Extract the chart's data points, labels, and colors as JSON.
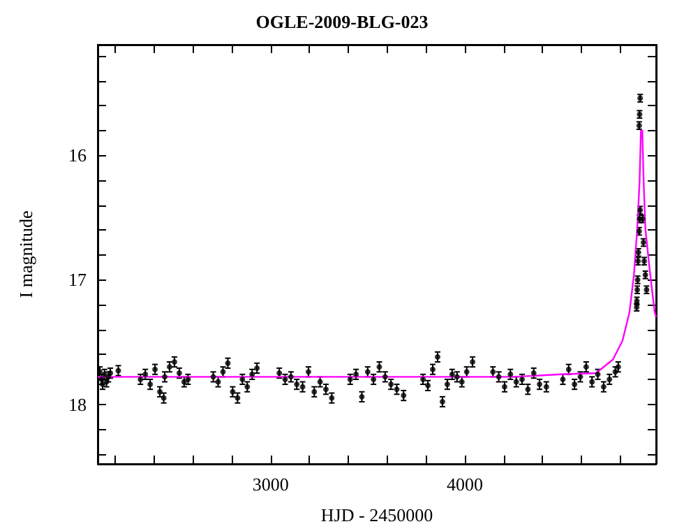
{
  "chart_data": {
    "type": "scatter",
    "title": "OGLE-2009-BLG-023",
    "xlabel": "HJD - 2450000",
    "ylabel": "I magnitude",
    "xlim": [
      2110,
      4985
    ],
    "ylim": [
      18.48,
      15.11
    ],
    "xticks": [
      {
        "value": 2200,
        "label": null
      },
      {
        "value": 2400,
        "label": null
      },
      {
        "value": 2600,
        "label": null
      },
      {
        "value": 2800,
        "label": null
      },
      3000,
      {
        "value": 3200,
        "label": null
      },
      {
        "value": 3400,
        "label": null
      },
      {
        "value": 3600,
        "label": null
      },
      {
        "value": 3800,
        "label": null
      },
      4000,
      {
        "value": 4200,
        "label": null
      },
      {
        "value": 4400,
        "label": null
      },
      {
        "value": 4600,
        "label": null
      },
      {
        "value": 4800,
        "label": null
      }
    ],
    "yticks": [
      {
        "value": 15.2,
        "label": null
      },
      {
        "value": 15.4,
        "label": null
      },
      {
        "value": 15.6,
        "label": null
      },
      {
        "value": 15.8,
        "label": null
      },
      16,
      {
        "value": 16.2,
        "label": null
      },
      {
        "value": 16.4,
        "label": null
      },
      {
        "value": 16.6,
        "label": null
      },
      {
        "value": 16.8,
        "label": null
      },
      17,
      {
        "value": 17.2,
        "label": null
      },
      {
        "value": 17.4,
        "label": null
      },
      {
        "value": 17.6,
        "label": null
      },
      {
        "value": 17.8,
        "label": null
      },
      18,
      {
        "value": 18.2,
        "label": null
      },
      {
        "value": 18.4,
        "label": null
      }
    ],
    "grid": false,
    "marker": "circle",
    "series": [
      {
        "color": "#000000",
        "x": [
          2121,
          2130,
          2135,
          2145,
          2155,
          2165,
          2175,
          2216,
          2330,
          2355,
          2380,
          2405,
          2430,
          2450,
          2455,
          2480,
          2505,
          2530,
          2555,
          2575,
          2705,
          2730,
          2755,
          2780,
          2805,
          2830,
          2855,
          2880,
          2905,
          2930,
          3045,
          3075,
          3105,
          3135,
          3165,
          3195,
          3225,
          3255,
          3285,
          3315,
          3410,
          3440,
          3470,
          3500,
          3530,
          3560,
          3590,
          3620,
          3650,
          3685,
          3785,
          3810,
          3835,
          3860,
          3885,
          3910,
          3935,
          3960,
          3985,
          4010,
          4040,
          4145,
          4175,
          4205,
          4235,
          4265,
          4295,
          4325,
          4355,
          4385,
          4420,
          4505,
          4535,
          4565,
          4595,
          4625,
          4655,
          4685,
          4715,
          4745,
          4775,
          4790,
          4885,
          4886,
          4888,
          4890,
          4892,
          4894,
          4898,
          4900,
          4903,
          4898,
          4900,
          4903,
          4916,
          4920,
          4924,
          4930,
          4936
        ],
        "values": [
          17.74,
          17.8,
          17.84,
          17.76,
          17.82,
          17.78,
          17.75,
          17.73,
          17.8,
          17.76,
          17.84,
          17.72,
          17.9,
          17.95,
          17.78,
          17.7,
          17.66,
          17.75,
          17.82,
          17.8,
          17.78,
          17.82,
          17.74,
          17.67,
          17.9,
          17.95,
          17.8,
          17.86,
          17.76,
          17.71,
          17.75,
          17.8,
          17.78,
          17.84,
          17.86,
          17.74,
          17.9,
          17.82,
          17.88,
          17.95,
          17.8,
          17.76,
          17.94,
          17.74,
          17.8,
          17.7,
          17.78,
          17.84,
          17.88,
          17.93,
          17.8,
          17.85,
          17.72,
          17.62,
          17.98,
          17.84,
          17.76,
          17.78,
          17.82,
          17.74,
          17.66,
          17.74,
          17.78,
          17.86,
          17.76,
          17.82,
          17.8,
          17.88,
          17.75,
          17.84,
          17.86,
          17.8,
          17.72,
          17.84,
          17.78,
          17.7,
          17.82,
          17.76,
          17.86,
          17.8,
          17.74,
          17.7,
          17.22,
          17.17,
          17.08,
          17.0,
          16.85,
          16.78,
          16.61,
          16.51,
          16.44,
          15.76,
          15.67,
          15.54,
          16.51,
          16.7,
          16.85,
          16.96,
          17.08
        ],
        "errors": [
          0.04,
          0.04,
          0.04,
          0.04,
          0.04,
          0.04,
          0.04,
          0.04,
          0.04,
          0.04,
          0.04,
          0.04,
          0.04,
          0.04,
          0.04,
          0.04,
          0.04,
          0.04,
          0.04,
          0.04,
          0.04,
          0.04,
          0.04,
          0.04,
          0.04,
          0.04,
          0.04,
          0.04,
          0.04,
          0.04,
          0.04,
          0.04,
          0.04,
          0.04,
          0.04,
          0.04,
          0.04,
          0.04,
          0.04,
          0.04,
          0.04,
          0.04,
          0.04,
          0.04,
          0.04,
          0.04,
          0.04,
          0.04,
          0.04,
          0.04,
          0.04,
          0.04,
          0.04,
          0.04,
          0.04,
          0.04,
          0.04,
          0.04,
          0.04,
          0.04,
          0.04,
          0.04,
          0.04,
          0.04,
          0.04,
          0.04,
          0.04,
          0.04,
          0.04,
          0.04,
          0.04,
          0.04,
          0.04,
          0.04,
          0.04,
          0.04,
          0.04,
          0.04,
          0.04,
          0.04,
          0.04,
          0.04,
          0.03,
          0.03,
          0.03,
          0.03,
          0.03,
          0.03,
          0.03,
          0.03,
          0.03,
          0.03,
          0.03,
          0.03,
          0.03,
          0.03,
          0.03,
          0.03,
          0.03
        ]
      },
      {
        "type": "line",
        "color": "#ff00ff",
        "marker": "none",
        "x": [
          2110,
          4245,
          4496,
          4676,
          4763,
          4812,
          4848,
          4871,
          4888,
          4900,
          4907,
          4914,
          4921,
          4930,
          4950,
          4964,
          4978,
          4985
        ],
        "values": [
          17.78,
          17.78,
          17.76,
          17.75,
          17.64,
          17.49,
          17.26,
          16.96,
          16.59,
          16.21,
          15.8,
          15.8,
          16.21,
          16.59,
          16.89,
          17.08,
          17.26,
          17.3
        ]
      }
    ]
  }
}
